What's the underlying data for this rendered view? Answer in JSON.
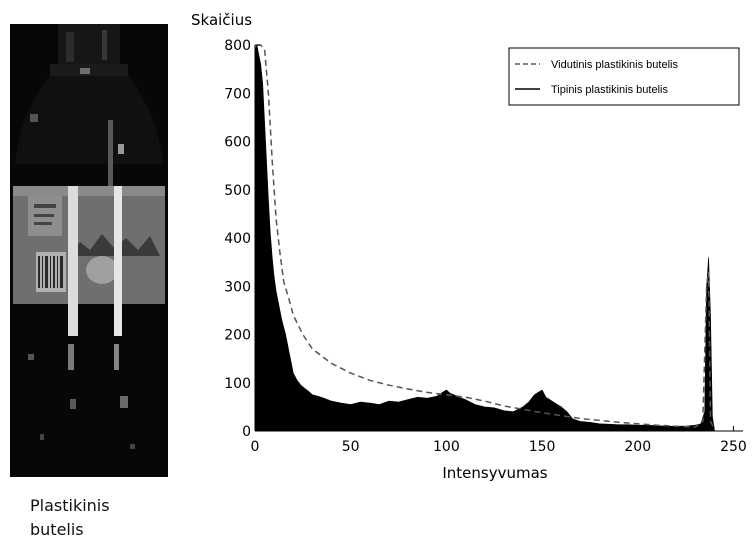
{
  "figure": {
    "photo_caption": [
      "Plastikinis",
      "butelis"
    ]
  },
  "chart_data": {
    "type": "area",
    "ylabel": "Skaičius",
    "xlabel": "Intensyvumas",
    "xlim": [
      0,
      255
    ],
    "ylim": [
      0,
      800
    ],
    "x_ticks": [
      0,
      50,
      100,
      150,
      200,
      250
    ],
    "y_ticks": [
      0,
      100,
      200,
      300,
      400,
      500,
      600,
      700,
      800
    ],
    "grid": false,
    "legend_position": "top-right",
    "series": [
      {
        "name": "Vidutinis plastikinis butelis",
        "style": "dashed",
        "color": "#555555",
        "x": [
          1,
          3,
          5,
          7,
          9,
          11,
          13,
          15,
          18,
          20,
          25,
          30,
          40,
          50,
          60,
          70,
          80,
          90,
          100,
          110,
          120,
          130,
          140,
          150,
          160,
          170,
          180,
          190,
          200,
          210,
          220,
          230,
          234,
          236,
          237,
          238,
          240
        ],
        "values": [
          800,
          800,
          790,
          700,
          560,
          440,
          370,
          310,
          270,
          240,
          200,
          170,
          140,
          120,
          105,
          95,
          87,
          80,
          75,
          70,
          62,
          52,
          45,
          38,
          32,
          26,
          22,
          18,
          15,
          12,
          10,
          8,
          20,
          300,
          330,
          20,
          5
        ]
      },
      {
        "name": "Tipinis plastikinis butelis",
        "style": "filled",
        "color": "#000000",
        "x": [
          0,
          1,
          2,
          3,
          4,
          5,
          6,
          7,
          8,
          9,
          10,
          11,
          12,
          13,
          14,
          15,
          16,
          17,
          18,
          19,
          20,
          22,
          24,
          26,
          28,
          30,
          33,
          36,
          40,
          45,
          50,
          55,
          60,
          65,
          70,
          75,
          80,
          85,
          90,
          95,
          98,
          100,
          102,
          104,
          106,
          108,
          110,
          115,
          120,
          125,
          130,
          135,
          140,
          143,
          146,
          148,
          150,
          152,
          154,
          156,
          158,
          160,
          163,
          166,
          170,
          175,
          180,
          185,
          190,
          195,
          200,
          205,
          210,
          215,
          220,
          225,
          230,
          233,
          235,
          236,
          237,
          238,
          239,
          240
        ],
        "values": [
          790,
          800,
          780,
          760,
          720,
          640,
          560,
          480,
          410,
          360,
          320,
          290,
          270,
          250,
          230,
          215,
          200,
          180,
          160,
          140,
          120,
          105,
          95,
          88,
          82,
          75,
          72,
          68,
          62,
          58,
          55,
          60,
          58,
          55,
          62,
          60,
          65,
          70,
          68,
          72,
          80,
          85,
          78,
          75,
          70,
          68,
          65,
          55,
          50,
          48,
          42,
          40,
          50,
          60,
          75,
          80,
          85,
          70,
          65,
          60,
          55,
          50,
          40,
          25,
          20,
          18,
          15,
          14,
          13,
          13,
          12,
          12,
          11,
          10,
          10,
          10,
          12,
          15,
          40,
          300,
          360,
          240,
          30,
          5
        ]
      }
    ]
  }
}
